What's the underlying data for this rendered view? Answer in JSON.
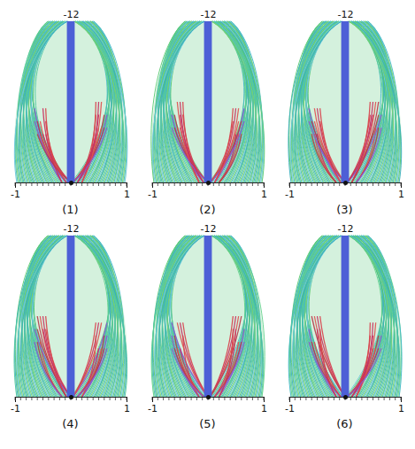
{
  "chart_data": [
    {
      "type": "streamlines",
      "title": "(1)",
      "xlim": [
        -1,
        1
      ],
      "xticks": [
        -1,
        1
      ],
      "ylim": [
        0,
        -12
      ],
      "yticks": [
        -12
      ]
    },
    {
      "type": "streamlines",
      "title": "(2)",
      "xlim": [
        -1,
        1
      ],
      "xticks": [
        -1,
        1
      ],
      "ylim": [
        0,
        -12
      ],
      "yticks": [
        -12
      ]
    },
    {
      "type": "streamlines",
      "title": "(3)",
      "xlim": [
        -1,
        1
      ],
      "xticks": [
        -1,
        1
      ],
      "ylim": [
        0,
        -12
      ],
      "yticks": [
        -12
      ]
    },
    {
      "type": "streamlines",
      "title": "(4)",
      "xlim": [
        -1,
        1
      ],
      "xticks": [
        -1,
        1
      ],
      "ylim": [
        0,
        -12
      ],
      "yticks": [
        -12
      ]
    },
    {
      "type": "streamlines",
      "title": "(5)",
      "xlim": [
        -1,
        1
      ],
      "xticks": [
        -1,
        1
      ],
      "ylim": [
        0,
        -12
      ],
      "yticks": [
        -12
      ]
    },
    {
      "type": "streamlines",
      "title": "(6)",
      "xlim": [
        -1,
        1
      ],
      "xticks": [
        -1,
        1
      ],
      "ylim": [
        0,
        -12
      ],
      "yticks": [
        -12
      ]
    }
  ]
}
